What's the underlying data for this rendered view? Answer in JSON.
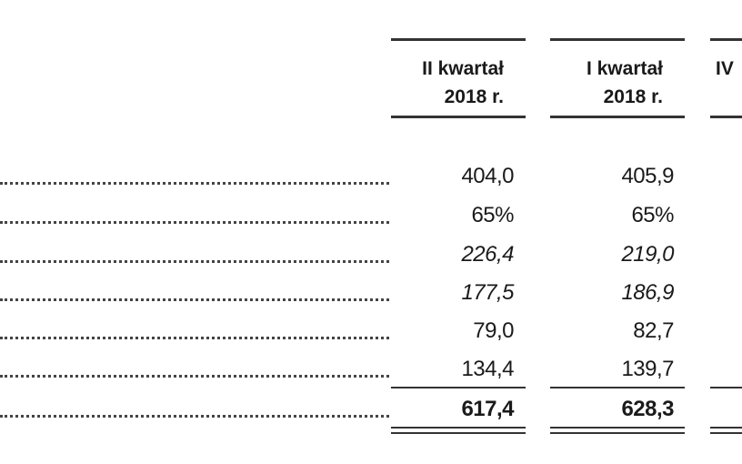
{
  "headers": {
    "col1": {
      "line1": "II kwartał",
      "line2": "2018 r."
    },
    "col2": {
      "line1": "I kwartał",
      "line2": "2018 r."
    },
    "col3": {
      "line1": "IV"
    }
  },
  "rows": [
    {
      "style": "normal",
      "col1": "404,0",
      "col2": "405,9"
    },
    {
      "style": "normal",
      "col1": "65%",
      "col2": "65%"
    },
    {
      "style": "italic",
      "col1": "226,4",
      "col2": "219,0"
    },
    {
      "style": "italic",
      "col1": "177,5",
      "col2": "186,9"
    },
    {
      "style": "normal",
      "col1": "79,0",
      "col2": "82,7"
    },
    {
      "style": "normal",
      "col1": "134,4",
      "col2": "139,7"
    },
    {
      "style": "total",
      "col1": "617,4",
      "col2": "628,3"
    }
  ]
}
